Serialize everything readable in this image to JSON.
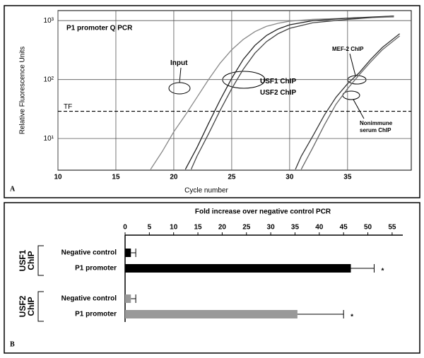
{
  "chart_data": [
    {
      "type": "line",
      "panel_label": "A",
      "title": "P1 promoter Q PCR",
      "x_label": "Cycle number",
      "y_label": "Relative Fluorescence Units",
      "xlim": [
        10,
        40.5
      ],
      "xticks": [
        10,
        15,
        20,
        25,
        30,
        35
      ],
      "ylim": [
        2.9,
        1480
      ],
      "yticks": [
        {
          "value": 10,
          "label": "10¹"
        },
        {
          "value": 100,
          "label": "10²"
        },
        {
          "value": 1000,
          "label": "10³"
        }
      ],
      "log_y": true,
      "grid": true,
      "threshold": 29,
      "threshold_label": "TF",
      "series": [
        {
          "name": "Input",
          "color": "#888888",
          "x": [
            18,
            19,
            20,
            21,
            22,
            23,
            24,
            25,
            26,
            27,
            28,
            29,
            30,
            32,
            35,
            39
          ],
          "values": [
            3,
            6,
            13,
            25,
            50,
            100,
            190,
            320,
            480,
            650,
            800,
            900,
            980,
            1050,
            1100,
            1150
          ]
        },
        {
          "name": "USF1 ChIP",
          "color": "#222222",
          "x": [
            21,
            22,
            23,
            24,
            25,
            26,
            27,
            28,
            29,
            30,
            32,
            35,
            39
          ],
          "values": [
            3,
            7,
            18,
            45,
            105,
            220,
            380,
            560,
            720,
            850,
            1000,
            1100,
            1200
          ]
        },
        {
          "name": "USF2 ChIP",
          "color": "#444444",
          "x": [
            21.5,
            22,
            23,
            24,
            25,
            26,
            27,
            28,
            29,
            30,
            32,
            35,
            39
          ],
          "values": [
            3,
            5,
            12,
            30,
            70,
            150,
            280,
            440,
            600,
            740,
            920,
            1050,
            1200
          ]
        },
        {
          "name": "MEF-2 ChIP",
          "color": "#333333",
          "x": [
            30.5,
            31,
            32,
            33,
            34,
            35,
            36,
            37,
            38,
            39.5
          ],
          "values": [
            3,
            5,
            11,
            25,
            50,
            85,
            130,
            220,
            350,
            600
          ]
        },
        {
          "name": "Nonimmune serum ChIP",
          "color": "#666666",
          "x": [
            31,
            32,
            33,
            34,
            35,
            36,
            37,
            38,
            39.5
          ],
          "values": [
            3,
            7,
            17,
            38,
            70,
            120,
            200,
            320,
            550
          ]
        }
      ]
    },
    {
      "type": "hbar",
      "panel_label": "B",
      "x_label": "Fold increase over negative control PCR",
      "groups": [
        "USF1 ChIP",
        "USF2 ChIP"
      ],
      "categories": [
        "Negative control",
        "P1 promoter",
        "Negative control",
        "P1 promoter"
      ],
      "values": [
        1.2,
        46.5,
        1.2,
        35.5
      ],
      "errors": [
        1,
        4.8,
        1,
        9.5
      ],
      "colors": [
        "#000000",
        "#000000",
        "#999999",
        "#999999"
      ],
      "significance": [
        null,
        "*",
        null,
        "*"
      ],
      "xlim": [
        0,
        57.2
      ],
      "xticks": [
        0,
        5,
        10,
        15,
        20,
        25,
        30,
        35,
        40,
        45,
        50,
        55
      ]
    }
  ]
}
